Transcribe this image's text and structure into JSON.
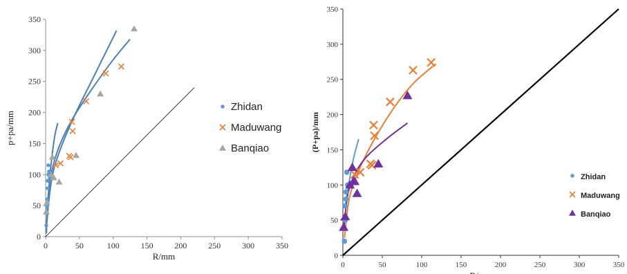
{
  "chart_data": [
    {
      "type": "scatter",
      "title": "",
      "xlabel": "R/mm",
      "ylabel": "p+pa/mm",
      "xlim": [
        0,
        350
      ],
      "ylim": [
        0,
        350
      ],
      "xticks": [
        0,
        50,
        100,
        150,
        200,
        250,
        300,
        350
      ],
      "yticks": [
        0,
        50,
        100,
        150,
        200,
        250,
        300,
        350
      ],
      "grid": false,
      "legend_position": "right",
      "series": [
        {
          "name": "Zhidan",
          "marker": "circle",
          "color": "#5B9BD5",
          "points": [
            [
              1,
              18
            ],
            [
              2,
              48
            ],
            [
              2,
              60
            ],
            [
              3,
              78
            ],
            [
              3,
              90
            ],
            [
              4,
              100
            ],
            [
              4,
              115
            ],
            [
              5,
              105
            ],
            [
              6,
              95
            ]
          ]
        },
        {
          "name": "Maduwang",
          "marker": "x",
          "color": "#ED7D31",
          "points": [
            [
              15,
              115
            ],
            [
              22,
              118
            ],
            [
              35,
              130
            ],
            [
              37,
              128
            ],
            [
              39,
              185
            ],
            [
              40,
              170
            ],
            [
              60,
              218
            ],
            [
              89,
              263
            ],
            [
              112,
              274
            ]
          ]
        },
        {
          "name": "Banqiao",
          "marker": "triangle",
          "color": "#A6A6A6",
          "points": [
            [
              1,
              40
            ],
            [
              2,
              55
            ],
            [
              8,
              100
            ],
            [
              10,
              128
            ],
            [
              12,
              95
            ],
            [
              20,
              88
            ],
            [
              45,
              131
            ],
            [
              81,
              230
            ],
            [
              131,
              335
            ]
          ]
        }
      ],
      "trendlines": [
        {
          "color": "#4A7FB5",
          "points": [
            [
              1,
              5
            ],
            [
              3,
              45
            ],
            [
              6,
              95
            ],
            [
              10,
              135
            ],
            [
              14,
              165
            ],
            [
              18,
              183
            ]
          ]
        },
        {
          "color": "#4A7FB5",
          "points": [
            [
              2,
              25
            ],
            [
              6,
              70
            ],
            [
              12,
              108
            ],
            [
              25,
              150
            ],
            [
              45,
              200
            ],
            [
              70,
              255
            ],
            [
              105,
              332
            ]
          ]
        },
        {
          "color": "#4A7FB5",
          "points": [
            [
              1,
              5
            ],
            [
              3,
              55
            ],
            [
              8,
              100
            ],
            [
              20,
              145
            ],
            [
              40,
              190
            ],
            [
              70,
              240
            ],
            [
              100,
              285
            ],
            [
              125,
              318
            ]
          ]
        }
      ],
      "reference_line": {
        "color": "#000000",
        "points": [
          [
            0,
            0
          ],
          [
            220,
            240
          ]
        ]
      }
    },
    {
      "type": "scatter",
      "title": "",
      "xlabel": "R/mm",
      "ylabel": "(P+pa)/mm",
      "xlim": [
        0,
        350
      ],
      "ylim": [
        0,
        350
      ],
      "xticks": [
        0,
        50,
        100,
        150,
        200,
        250,
        300,
        350
      ],
      "yticks": [
        0,
        50,
        100,
        150,
        200,
        250,
        300,
        350
      ],
      "grid": false,
      "legend_position": "right",
      "series": [
        {
          "name": "Zhidan",
          "marker": "circle",
          "color": "#5B9BD5",
          "points": [
            [
              2,
              20
            ],
            [
              3,
              50
            ],
            [
              3,
              70
            ],
            [
              4,
              80
            ],
            [
              4,
              90
            ],
            [
              5,
              118
            ],
            [
              6,
              100
            ]
          ]
        },
        {
          "name": "Maduwang",
          "marker": "x",
          "color": "#ED7D31",
          "points": [
            [
              15,
              115
            ],
            [
              22,
              118
            ],
            [
              35,
              130
            ],
            [
              37,
              128
            ],
            [
              39,
              185
            ],
            [
              40,
              170
            ],
            [
              60,
              218
            ],
            [
              89,
              263
            ],
            [
              112,
              274
            ]
          ]
        },
        {
          "name": "Banqiao",
          "marker": "triangle",
          "color": "#7030A0",
          "points": [
            [
              1,
              40
            ],
            [
              3,
              55
            ],
            [
              9,
              100
            ],
            [
              12,
              125
            ],
            [
              15,
              105
            ],
            [
              18,
              88
            ],
            [
              45,
              130
            ],
            [
              82,
              227
            ]
          ]
        }
      ],
      "trendlines": [
        {
          "color": "#5B9BD5",
          "points": [
            [
              3,
              70
            ],
            [
              8,
              105
            ],
            [
              14,
              140
            ],
            [
              20,
              165
            ]
          ]
        },
        {
          "color": "#ED7D31",
          "points": [
            [
              2,
              25
            ],
            [
              8,
              80
            ],
            [
              20,
              120
            ],
            [
              40,
              165
            ],
            [
              65,
              210
            ],
            [
              90,
              245
            ],
            [
              118,
              272
            ]
          ]
        },
        {
          "color": "#7030A0",
          "points": [
            [
              1,
              35
            ],
            [
              6,
              85
            ],
            [
              15,
              115
            ],
            [
              30,
              140
            ],
            [
              55,
              165
            ],
            [
              82,
              188
            ]
          ]
        }
      ],
      "reference_line": {
        "color": "#000000",
        "points": [
          [
            0,
            0
          ],
          [
            350,
            350
          ]
        ]
      }
    }
  ]
}
